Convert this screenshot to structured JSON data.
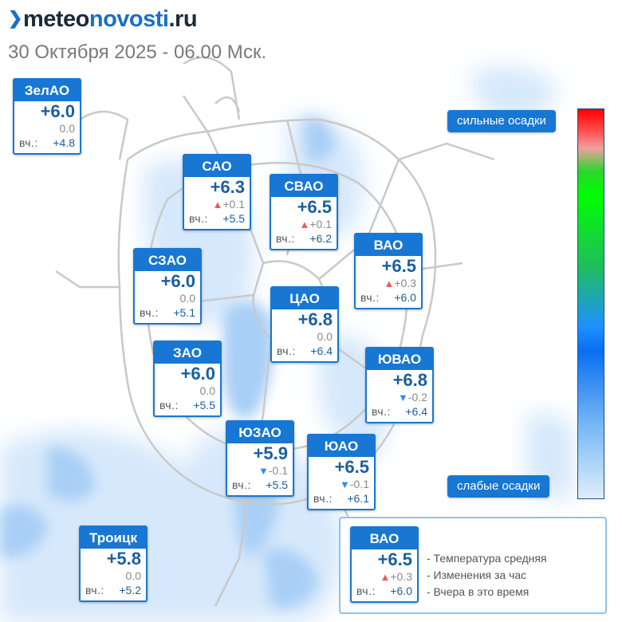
{
  "header": {
    "logo_part_dark_1": "meteo",
    "logo_part_blue": "novosti",
    "logo_part_dark_2": ".ru",
    "subtitle": "30 Октября 2025 - 06.00 Мск."
  },
  "yesterday_label": "вч.:",
  "districts": {
    "zelao": {
      "name": "ЗелАО",
      "temp": "+6.0",
      "change": "0.0",
      "trend": "none",
      "yesterday": "+4.8"
    },
    "sao": {
      "name": "САО",
      "temp": "+6.3",
      "change": "+0.1",
      "trend": "up",
      "yesterday": "+5.5"
    },
    "svao": {
      "name": "СВАО",
      "temp": "+6.5",
      "change": "+0.1",
      "trend": "up",
      "yesterday": "+6.2"
    },
    "vao": {
      "name": "ВАО",
      "temp": "+6.5",
      "change": "+0.3",
      "trend": "up",
      "yesterday": "+6.0"
    },
    "szao": {
      "name": "СЗАО",
      "temp": "+6.0",
      "change": "0.0",
      "trend": "none",
      "yesterday": "+5.1"
    },
    "cao": {
      "name": "ЦАО",
      "temp": "+6.8",
      "change": "0.0",
      "trend": "none",
      "yesterday": "+6.4"
    },
    "zao": {
      "name": "ЗАО",
      "temp": "+6.0",
      "change": "0.0",
      "trend": "none",
      "yesterday": "+5.5"
    },
    "yuvao": {
      "name": "ЮВАО",
      "temp": "+6.8",
      "change": "-0.2",
      "trend": "down",
      "yesterday": "+6.4"
    },
    "yuzao": {
      "name": "ЮЗАО",
      "temp": "+5.9",
      "change": "-0.1",
      "trend": "down",
      "yesterday": "+5.5"
    },
    "yuao": {
      "name": "ЮАО",
      "temp": "+6.5",
      "change": "-0.1",
      "trend": "down",
      "yesterday": "+6.1"
    },
    "troitsk": {
      "name": "Троицк",
      "temp": "+5.8",
      "change": "0.0",
      "trend": "none",
      "yesterday": "+5.2"
    }
  },
  "scale": {
    "top_label": "сильные осадки",
    "bottom_label": "слабые осадки"
  },
  "legend": {
    "example": {
      "name": "ВАО",
      "temp": "+6.5",
      "change": "+0.3",
      "trend": "up",
      "yesterday": "+6.0"
    },
    "items": [
      "- Температура средняя",
      "- Изменения за час",
      "- Вчера в это время"
    ]
  },
  "colors": {
    "accent": "#1877d2",
    "temperature_text": "#1b5e9e",
    "trend_up": "#ee5a5a",
    "trend_down": "#2d8fe0",
    "precipitation_light": "#cfe4fa",
    "precipitation_medium": "#8fc0f2"
  }
}
